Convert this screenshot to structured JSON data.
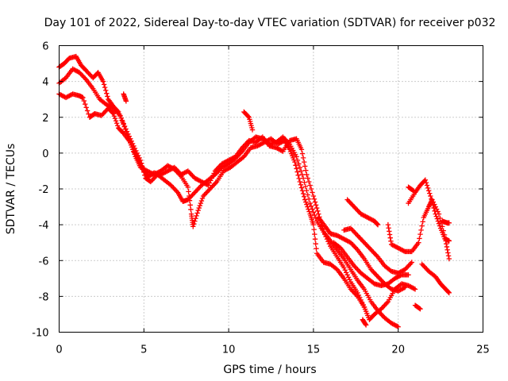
{
  "chart_data": {
    "type": "scatter",
    "title": "Day 101 of 2022, Sidereal Day-to-day VTEC variation (SDTVAR) for receiver p032",
    "xlabel": "GPS time / hours",
    "ylabel": "SDTVAR / TECUs",
    "xlim": [
      0,
      25
    ],
    "ylim": [
      -10,
      6
    ],
    "xticks": [
      0,
      5,
      10,
      15,
      20,
      25
    ],
    "yticks": [
      -10,
      -8,
      -6,
      -4,
      -2,
      0,
      2,
      4,
      6
    ],
    "grid": true,
    "marker": "+",
    "marker_color": "#ff0000",
    "series": [
      {
        "values": [
          [
            0.0,
            4.8
          ],
          [
            0.3,
            5.0
          ],
          [
            0.6,
            5.3
          ],
          [
            1.0,
            5.4
          ],
          [
            1.3,
            4.9
          ],
          [
            1.6,
            4.6
          ],
          [
            2.0,
            4.2
          ],
          [
            2.3,
            4.5
          ],
          [
            2.6,
            4.0
          ],
          [
            2.9,
            3.0
          ],
          [
            3.2,
            2.6
          ],
          [
            3.5,
            2.3
          ],
          [
            3.8,
            1.6
          ],
          [
            4.1,
            0.8
          ],
          [
            4.4,
            0.1
          ],
          [
            4.7,
            -0.4
          ],
          [
            5.0,
            -1.0
          ],
          [
            5.3,
            -1.3
          ],
          [
            5.6,
            -1.1
          ],
          [
            6.0,
            -1.2
          ],
          [
            6.4,
            -1.0
          ],
          [
            6.8,
            -0.8
          ],
          [
            7.2,
            -1.2
          ],
          [
            7.6,
            -1.0
          ],
          [
            8.0,
            -1.4
          ],
          [
            8.4,
            -1.6
          ],
          [
            8.8,
            -1.8
          ],
          [
            9.2,
            -1.0
          ],
          [
            9.6,
            -0.6
          ],
          [
            10.0,
            -0.4
          ],
          [
            10.4,
            -0.2
          ],
          [
            10.8,
            0.3
          ],
          [
            11.2,
            0.7
          ],
          [
            11.6,
            0.6
          ],
          [
            12.0,
            0.9
          ],
          [
            12.4,
            0.4
          ],
          [
            12.8,
            0.3
          ],
          [
            13.2,
            0.1
          ],
          [
            13.6,
            0.7
          ],
          [
            14.0,
            0.8
          ],
          [
            14.3,
            0.2
          ],
          [
            14.6,
            -1.2
          ],
          [
            15.0,
            -2.4
          ],
          [
            15.3,
            -3.4
          ],
          [
            15.6,
            -4.4
          ],
          [
            16.0,
            -5.2
          ],
          [
            16.4,
            -5.8
          ],
          [
            16.8,
            -6.4
          ],
          [
            17.2,
            -7.2
          ],
          [
            17.6,
            -7.8
          ],
          [
            18.0,
            -8.6
          ],
          [
            18.3,
            -9.3
          ],
          [
            18.6,
            -9.0
          ],
          [
            19.0,
            -8.7
          ],
          [
            19.4,
            -8.3
          ],
          [
            19.8,
            -7.6
          ],
          [
            20.2,
            -7.3
          ],
          [
            20.6,
            -7.4
          ],
          [
            21.0,
            -7.6
          ]
        ]
      },
      {
        "values": [
          [
            0.0,
            3.9
          ],
          [
            0.4,
            4.2
          ],
          [
            0.8,
            4.7
          ],
          [
            1.2,
            4.5
          ],
          [
            1.6,
            4.1
          ],
          [
            2.0,
            3.6
          ],
          [
            2.4,
            3.0
          ],
          [
            2.8,
            2.7
          ],
          [
            3.2,
            2.5
          ],
          [
            3.6,
            2.1
          ],
          [
            4.0,
            1.2
          ],
          [
            4.4,
            0.4
          ],
          [
            4.8,
            -0.4
          ],
          [
            5.1,
            -1.4
          ],
          [
            5.4,
            -1.6
          ],
          [
            5.8,
            -1.2
          ],
          [
            6.2,
            -1.5
          ],
          [
            6.6,
            -1.8
          ],
          [
            7.0,
            -2.2
          ],
          [
            7.3,
            -2.7
          ],
          [
            7.6,
            -2.6
          ],
          [
            8.0,
            -2.2
          ],
          [
            8.4,
            -1.8
          ],
          [
            8.8,
            -1.5
          ],
          [
            9.2,
            -1.2
          ],
          [
            9.6,
            -0.8
          ],
          [
            10.0,
            -0.6
          ],
          [
            10.4,
            -0.3
          ],
          [
            10.8,
            0.1
          ],
          [
            11.2,
            0.6
          ],
          [
            11.6,
            0.9
          ],
          [
            12.0,
            0.8
          ],
          [
            12.4,
            0.5
          ],
          [
            12.8,
            0.6
          ],
          [
            13.2,
            0.9
          ],
          [
            13.6,
            0.5
          ],
          [
            14.0,
            -0.2
          ],
          [
            14.4,
            -1.4
          ],
          [
            14.8,
            -2.8
          ],
          [
            15.2,
            -3.8
          ],
          [
            15.6,
            -4.4
          ],
          [
            16.0,
            -4.9
          ],
          [
            16.4,
            -5.4
          ],
          [
            16.8,
            -5.9
          ],
          [
            17.2,
            -6.5
          ],
          [
            17.6,
            -7.1
          ],
          [
            18.0,
            -7.6
          ],
          [
            18.4,
            -8.3
          ],
          [
            18.8,
            -8.8
          ],
          [
            19.2,
            -9.2
          ],
          [
            19.6,
            -9.5
          ],
          [
            20.0,
            -9.7
          ]
        ]
      },
      {
        "values": [
          [
            0.0,
            3.3
          ],
          [
            0.4,
            3.1
          ],
          [
            0.8,
            3.3
          ],
          [
            1.2,
            3.2
          ],
          [
            1.4,
            3.1
          ],
          [
            1.8,
            2.0
          ],
          [
            2.1,
            2.2
          ],
          [
            2.5,
            2.1
          ],
          [
            2.9,
            2.5
          ],
          [
            3.2,
            2.2
          ],
          [
            3.5,
            1.4
          ],
          [
            3.8,
            1.1
          ],
          [
            4.2,
            0.6
          ],
          [
            4.5,
            -0.2
          ],
          [
            4.8,
            -0.8
          ],
          [
            5.2,
            -1.0
          ],
          [
            5.6,
            -1.2
          ],
          [
            6.0,
            -1.0
          ],
          [
            6.4,
            -0.7
          ],
          [
            6.8,
            -0.9
          ],
          [
            7.2,
            -1.3
          ],
          [
            7.6,
            -1.9
          ],
          [
            7.8,
            -3.4
          ],
          [
            7.9,
            -4.1
          ],
          [
            8.2,
            -3.2
          ],
          [
            8.5,
            -2.4
          ],
          [
            8.9,
            -2.0
          ],
          [
            9.3,
            -1.6
          ],
          [
            9.7,
            -1.0
          ],
          [
            10.1,
            -0.8
          ],
          [
            10.5,
            -0.5
          ],
          [
            10.9,
            -0.2
          ],
          [
            11.3,
            0.3
          ],
          [
            11.7,
            0.4
          ],
          [
            12.1,
            0.6
          ],
          [
            12.5,
            0.8
          ],
          [
            12.9,
            0.5
          ],
          [
            13.3,
            0.7
          ],
          [
            13.6,
            0.2
          ],
          [
            13.9,
            -0.5
          ],
          [
            14.2,
            -1.6
          ],
          [
            14.5,
            -2.6
          ],
          [
            14.8,
            -3.4
          ],
          [
            15.0,
            -4.0
          ],
          [
            15.2,
            -5.6
          ],
          [
            15.6,
            -6.1
          ],
          [
            16.0,
            -6.2
          ],
          [
            16.4,
            -6.5
          ],
          [
            16.8,
            -7.0
          ],
          [
            17.2,
            -7.6
          ],
          [
            17.6,
            -8.0
          ],
          [
            18.0,
            -8.6
          ]
        ]
      },
      {
        "values": [
          [
            15.3,
            -3.6
          ],
          [
            15.7,
            -4.1
          ],
          [
            16.0,
            -4.5
          ],
          [
            16.4,
            -4.6
          ],
          [
            16.8,
            -4.8
          ],
          [
            17.2,
            -5.0
          ],
          [
            17.6,
            -5.4
          ],
          [
            18.0,
            -5.9
          ],
          [
            18.4,
            -6.5
          ],
          [
            18.8,
            -6.9
          ],
          [
            19.2,
            -7.3
          ],
          [
            19.6,
            -7.6
          ],
          [
            20.0,
            -7.7
          ],
          [
            20.4,
            -7.5
          ]
        ]
      },
      {
        "values": [
          [
            16.2,
            -5.0
          ],
          [
            16.6,
            -5.3
          ],
          [
            17.0,
            -5.8
          ],
          [
            17.4,
            -6.3
          ],
          [
            17.8,
            -6.7
          ],
          [
            18.2,
            -7.0
          ],
          [
            18.6,
            -7.3
          ],
          [
            19.0,
            -7.4
          ],
          [
            19.4,
            -7.3
          ],
          [
            19.8,
            -7.0
          ],
          [
            20.2,
            -6.8
          ],
          [
            20.6,
            -6.8
          ]
        ]
      },
      {
        "values": [
          [
            16.8,
            -4.3
          ],
          [
            17.2,
            -4.2
          ],
          [
            17.6,
            -4.6
          ],
          [
            18.0,
            -5.0
          ],
          [
            18.4,
            -5.4
          ],
          [
            18.8,
            -5.8
          ],
          [
            19.2,
            -6.3
          ],
          [
            19.6,
            -6.6
          ],
          [
            20.0,
            -6.7
          ],
          [
            20.4,
            -6.5
          ],
          [
            20.8,
            -6.1
          ]
        ]
      },
      {
        "values": [
          [
            17.0,
            -2.6
          ],
          [
            17.4,
            -3.0
          ],
          [
            17.8,
            -3.4
          ],
          [
            18.2,
            -3.6
          ],
          [
            18.6,
            -3.8
          ],
          [
            18.8,
            -4.0
          ]
        ]
      },
      {
        "values": [
          [
            19.4,
            -4.0
          ],
          [
            19.6,
            -5.1
          ],
          [
            20.0,
            -5.3
          ],
          [
            20.4,
            -5.5
          ],
          [
            20.8,
            -5.5
          ],
          [
            21.2,
            -5.0
          ],
          [
            21.5,
            -3.6
          ],
          [
            21.8,
            -3.0
          ],
          [
            22.0,
            -2.6
          ],
          [
            22.4,
            -3.4
          ],
          [
            22.8,
            -4.8
          ],
          [
            23.0,
            -4.9
          ]
        ]
      },
      {
        "values": [
          [
            20.6,
            -2.8
          ],
          [
            21.0,
            -2.2
          ],
          [
            21.3,
            -1.8
          ],
          [
            21.6,
            -1.5
          ],
          [
            21.9,
            -2.4
          ],
          [
            22.2,
            -3.4
          ],
          [
            22.5,
            -4.2
          ],
          [
            22.8,
            -4.9
          ],
          [
            23.0,
            -5.9
          ]
        ]
      },
      {
        "values": [
          [
            21.4,
            -6.2
          ],
          [
            21.8,
            -6.6
          ],
          [
            22.2,
            -6.9
          ],
          [
            22.5,
            -7.3
          ],
          [
            22.8,
            -7.6
          ],
          [
            23.0,
            -7.8
          ]
        ]
      },
      {
        "values": [
          [
            22.6,
            -3.8
          ],
          [
            22.9,
            -3.9
          ],
          [
            23.0,
            -3.9
          ]
        ]
      },
      {
        "values": [
          [
            21.0,
            -8.5
          ],
          [
            21.3,
            -8.7
          ]
        ]
      },
      {
        "values": [
          [
            20.6,
            -1.9
          ],
          [
            20.9,
            -2.1
          ]
        ]
      },
      {
        "values": [
          [
            10.9,
            2.3
          ],
          [
            11.2,
            2.0
          ],
          [
            11.4,
            1.3
          ]
        ]
      },
      {
        "values": [
          [
            3.8,
            3.3
          ],
          [
            3.95,
            2.9
          ]
        ]
      },
      {
        "values": [
          [
            17.9,
            -9.3
          ],
          [
            18.1,
            -9.6
          ]
        ]
      }
    ]
  }
}
